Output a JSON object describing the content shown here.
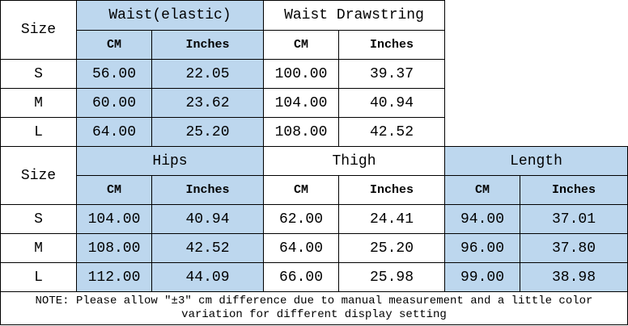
{
  "top_table": {
    "size_header": "Size",
    "groups": [
      {
        "name": "Waist(elastic)",
        "units": [
          "CM",
          "Inches"
        ],
        "color": "#bdd7ee"
      },
      {
        "name": "Waist Drawstring",
        "units": [
          "CM",
          "Inches"
        ],
        "color": "#ffffff"
      }
    ],
    "rows": [
      [
        "S",
        "56.00",
        "22.05",
        "100.00",
        "39.37"
      ],
      [
        "M",
        "60.00",
        "23.62",
        "104.00",
        "40.94"
      ],
      [
        "L",
        "64.00",
        "25.20",
        "108.00",
        "42.52"
      ]
    ]
  },
  "bottom_table": {
    "size_header": "Size",
    "groups": [
      {
        "name": "Hips",
        "units": [
          "CM",
          "Inches"
        ],
        "color": "#bdd7ee"
      },
      {
        "name": "Thigh",
        "units": [
          "CM",
          "Inches"
        ],
        "color": "#ffffff"
      },
      {
        "name": "Length",
        "units": [
          "CM",
          "Inches"
        ],
        "color": "#bdd7ee"
      }
    ],
    "rows": [
      [
        "S",
        "104.00",
        "40.94",
        "62.00",
        "24.41",
        "94.00",
        "37.01"
      ],
      [
        "M",
        "108.00",
        "42.52",
        "64.00",
        "25.20",
        "96.00",
        "37.80"
      ],
      [
        "L",
        "112.00",
        "44.09",
        "66.00",
        "25.98",
        "99.00",
        "38.98"
      ]
    ]
  },
  "note": "NOTE: Please allow \"±3\" cm difference due to manual measurement and a little color variation for different display setting"
}
